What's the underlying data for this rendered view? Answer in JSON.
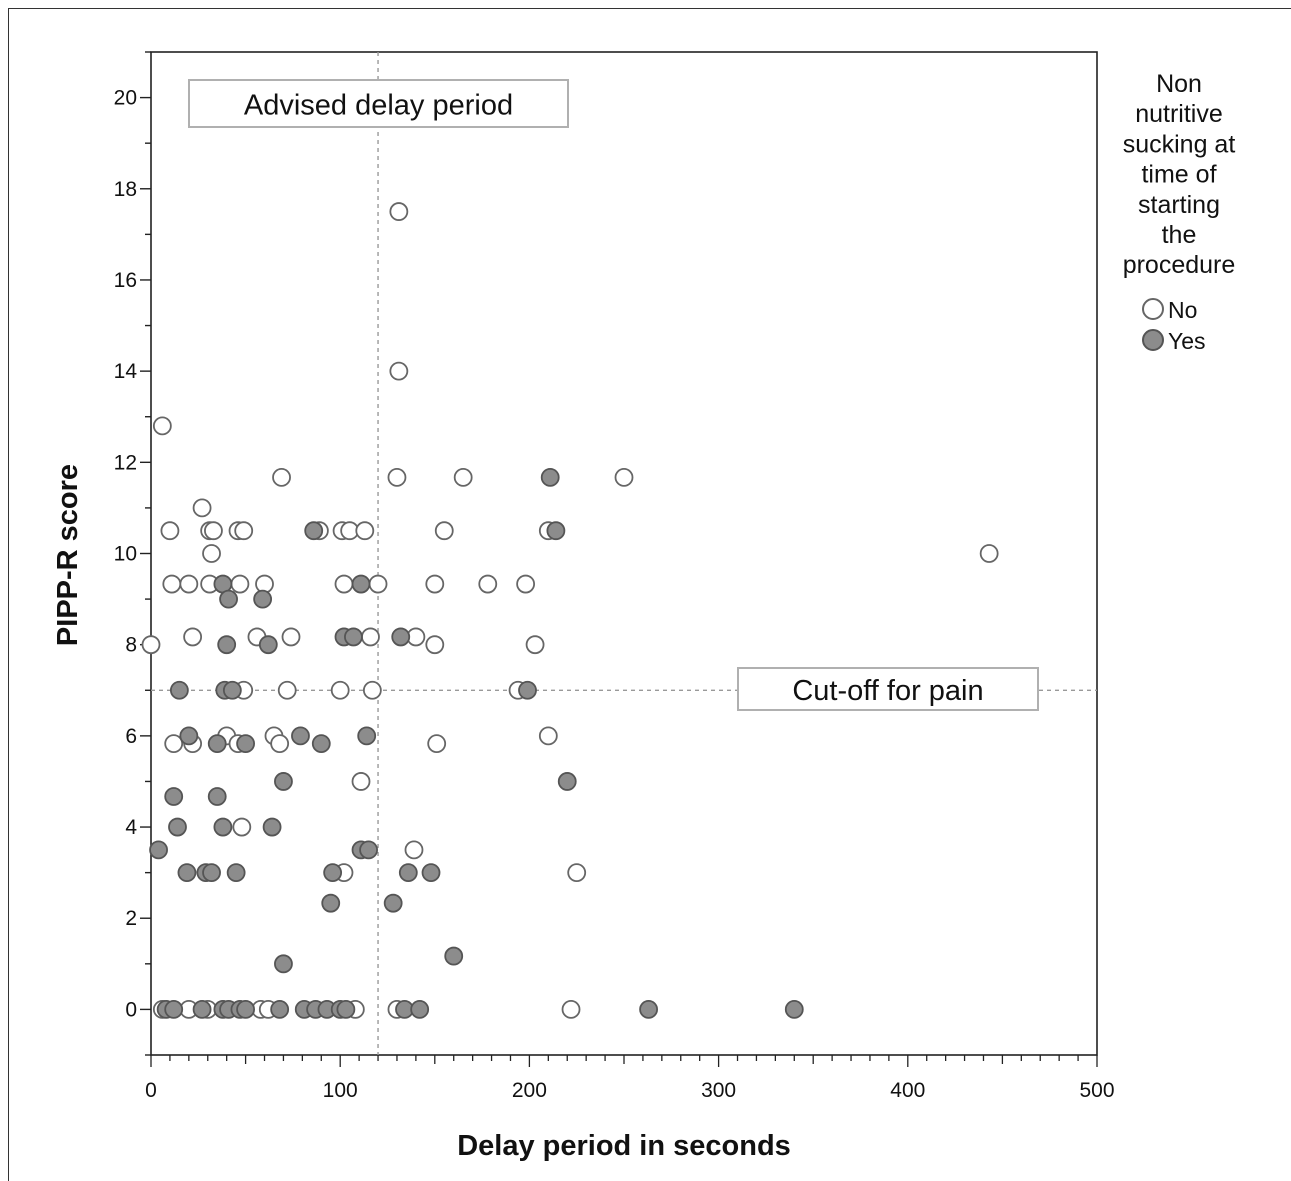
{
  "chart_data": {
    "type": "scatter",
    "title": "",
    "xlabel": "Delay period in seconds",
    "ylabel": "PIPP-R score",
    "xlim": [
      0,
      500
    ],
    "ylim": [
      -1,
      21
    ],
    "x_ticks": [
      0,
      100,
      200,
      300,
      400,
      500
    ],
    "y_ticks": [
      0,
      2,
      4,
      6,
      8,
      10,
      12,
      14,
      16,
      18,
      20
    ],
    "grid": false,
    "legend_placement": "right",
    "legend": {
      "title_lines": [
        "Non",
        "nutritive",
        "sucking at",
        "time of",
        "starting",
        "the",
        "procedure"
      ],
      "entries": [
        "No",
        "Yes"
      ]
    },
    "reference_lines": [
      {
        "orientation": "vertical",
        "value": 120,
        "label": "Advised delay period"
      },
      {
        "orientation": "horizontal",
        "value": 7,
        "label": "Cut-off for pain"
      }
    ],
    "series": [
      {
        "name": "No",
        "fill": "#ffffff",
        "stroke": "#666666",
        "points": [
          [
            6,
            12.8
          ],
          [
            10,
            10.5
          ],
          [
            11,
            9.33
          ],
          [
            27,
            11
          ],
          [
            31,
            10.5
          ],
          [
            33,
            10.5
          ],
          [
            32,
            10
          ],
          [
            20,
            9.33
          ],
          [
            31,
            9.33
          ],
          [
            0,
            8
          ],
          [
            22,
            8.17
          ],
          [
            12,
            5.83
          ],
          [
            22,
            5.83
          ],
          [
            40,
            6
          ],
          [
            46,
            5.83
          ],
          [
            65,
            6
          ],
          [
            68,
            5.83
          ],
          [
            48,
            4
          ],
          [
            46,
            10.5
          ],
          [
            49,
            10.5
          ],
          [
            47,
            9.33
          ],
          [
            60,
            9.33
          ],
          [
            56,
            8.17
          ],
          [
            74,
            8.17
          ],
          [
            72,
            7
          ],
          [
            49,
            7
          ],
          [
            69,
            11.67
          ],
          [
            89,
            10.5
          ],
          [
            101,
            10.5
          ],
          [
            105,
            10.5
          ],
          [
            113,
            10.5
          ],
          [
            102,
            9.33
          ],
          [
            120,
            9.33
          ],
          [
            100,
            7
          ],
          [
            116,
            8.17
          ],
          [
            117,
            7
          ],
          [
            111,
            5
          ],
          [
            102,
            3
          ],
          [
            131,
            17.5
          ],
          [
            131,
            14
          ],
          [
            130,
            11.67
          ],
          [
            165,
            11.67
          ],
          [
            155,
            10.5
          ],
          [
            150,
            9.33
          ],
          [
            178,
            9.33
          ],
          [
            198,
            9.33
          ],
          [
            140,
            8.17
          ],
          [
            150,
            8
          ],
          [
            203,
            8
          ],
          [
            194,
            7
          ],
          [
            151,
            5.83
          ],
          [
            139,
            3.5
          ],
          [
            210,
            10.5
          ],
          [
            210,
            6
          ],
          [
            225,
            3
          ],
          [
            250,
            11.67
          ],
          [
            443,
            10
          ],
          [
            222,
            0
          ],
          [
            20,
            0
          ],
          [
            30,
            0
          ],
          [
            58,
            0
          ],
          [
            62,
            0
          ],
          [
            130,
            0
          ],
          [
            108,
            0
          ],
          [
            6,
            0
          ]
        ]
      },
      {
        "name": "Yes",
        "fill": "#8c8c8c",
        "stroke": "#555555",
        "points": [
          [
            4,
            3.5
          ],
          [
            15,
            7
          ],
          [
            19,
            3
          ],
          [
            20,
            6
          ],
          [
            12,
            4.67
          ],
          [
            14,
            4
          ],
          [
            29,
            3
          ],
          [
            32,
            3
          ],
          [
            35,
            4.67
          ],
          [
            35,
            5.83
          ],
          [
            38,
            4
          ],
          [
            45,
            3
          ],
          [
            38,
            9.33
          ],
          [
            41,
            9
          ],
          [
            40,
            8
          ],
          [
            39,
            7
          ],
          [
            43,
            7
          ],
          [
            50,
            5.83
          ],
          [
            59,
            9
          ],
          [
            62,
            8
          ],
          [
            70,
            5
          ],
          [
            64,
            4
          ],
          [
            70,
            1
          ],
          [
            79,
            6
          ],
          [
            86,
            10.5
          ],
          [
            90,
            5.83
          ],
          [
            96,
            3
          ],
          [
            95,
            2.33
          ],
          [
            102,
            8.17
          ],
          [
            107,
            8.17
          ],
          [
            111,
            9.33
          ],
          [
            114,
            6
          ],
          [
            111,
            3.5
          ],
          [
            115,
            3.5
          ],
          [
            128,
            2.33
          ],
          [
            132,
            8.17
          ],
          [
            136,
            3
          ],
          [
            148,
            3
          ],
          [
            160,
            1.17
          ],
          [
            211,
            11.67
          ],
          [
            214,
            10.5
          ],
          [
            199,
            7
          ],
          [
            220,
            5
          ],
          [
            263,
            0
          ],
          [
            340,
            0
          ],
          [
            8,
            0
          ],
          [
            12,
            0
          ],
          [
            27,
            0
          ],
          [
            38,
            0
          ],
          [
            41,
            0
          ],
          [
            47,
            0
          ],
          [
            50,
            0
          ],
          [
            68,
            0
          ],
          [
            81,
            0
          ],
          [
            87,
            0
          ],
          [
            93,
            0
          ],
          [
            100,
            0
          ],
          [
            103,
            0
          ],
          [
            134,
            0
          ],
          [
            142,
            0
          ]
        ]
      }
    ]
  }
}
